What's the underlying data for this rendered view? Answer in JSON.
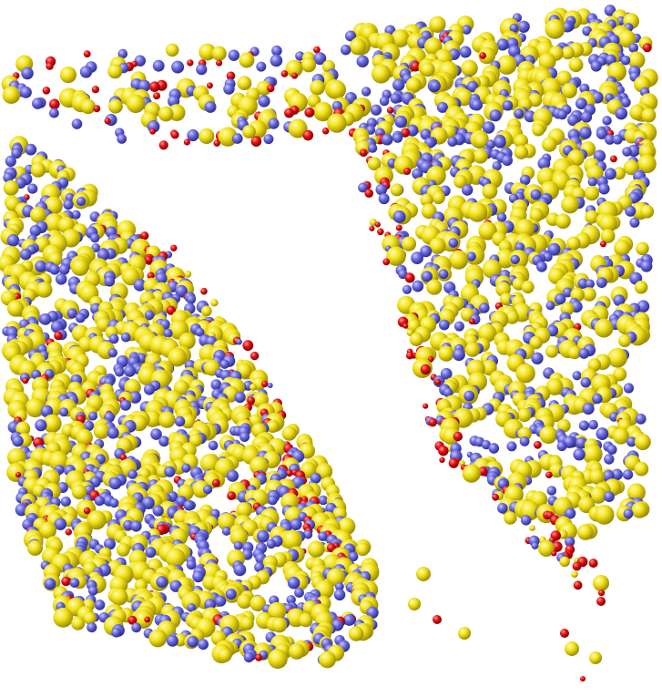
{
  "scene": {
    "background": "#ffffff",
    "species": [
      {
        "name": "yellow-atom",
        "color": "#f2e21a",
        "highlight": "#fffbb0",
        "shade": "#9a8a00"
      },
      {
        "name": "blue-atom",
        "color": "#6a6ae0",
        "highlight": "#c8c8ff",
        "shade": "#2c2c8a"
      },
      {
        "name": "red-atom",
        "color": "#e81010",
        "highlight": "#ff9a9a",
        "shade": "#7a0000"
      }
    ]
  }
}
